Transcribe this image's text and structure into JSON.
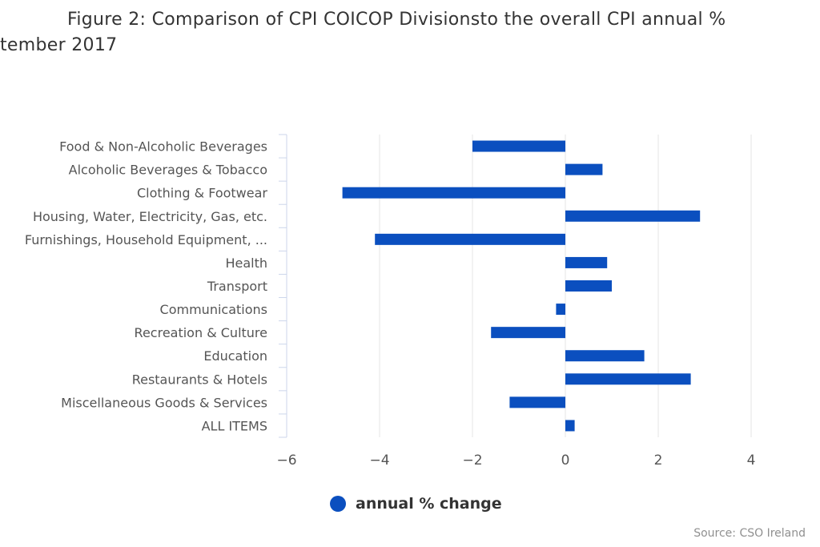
{
  "title": {
    "line1": "Figure 2: Comparison of CPI COICOP Divisionsto the overall CPI annual %",
    "line2": "tember 2017"
  },
  "credit": "Source: CSO Ireland",
  "chart_data": {
    "type": "bar",
    "orientation": "horizontal",
    "categories": [
      "Food & Non-Alcoholic Beverages",
      "Alcoholic Beverages & Tobacco",
      "Clothing & Footwear",
      "Housing, Water, Electricity, Gas, etc.",
      "Furnishings, Household Equipment, ...",
      "Health",
      "Transport",
      "Communications",
      "Recreation & Culture",
      "Education",
      "Restaurants & Hotels",
      "Miscellaneous Goods & Services",
      "ALL ITEMS"
    ],
    "series": [
      {
        "name": "annual % change",
        "color": "#0b4fbf",
        "values": [
          -2.0,
          0.8,
          -4.8,
          2.9,
          -4.1,
          0.9,
          1.0,
          -0.2,
          -1.6,
          1.7,
          2.7,
          -1.2,
          0.2
        ]
      }
    ],
    "xlim": [
      -6,
      4
    ],
    "xticks": [
      -6,
      -4,
      -2,
      0,
      2,
      4
    ],
    "grid": true,
    "legend": "bottom-center"
  }
}
